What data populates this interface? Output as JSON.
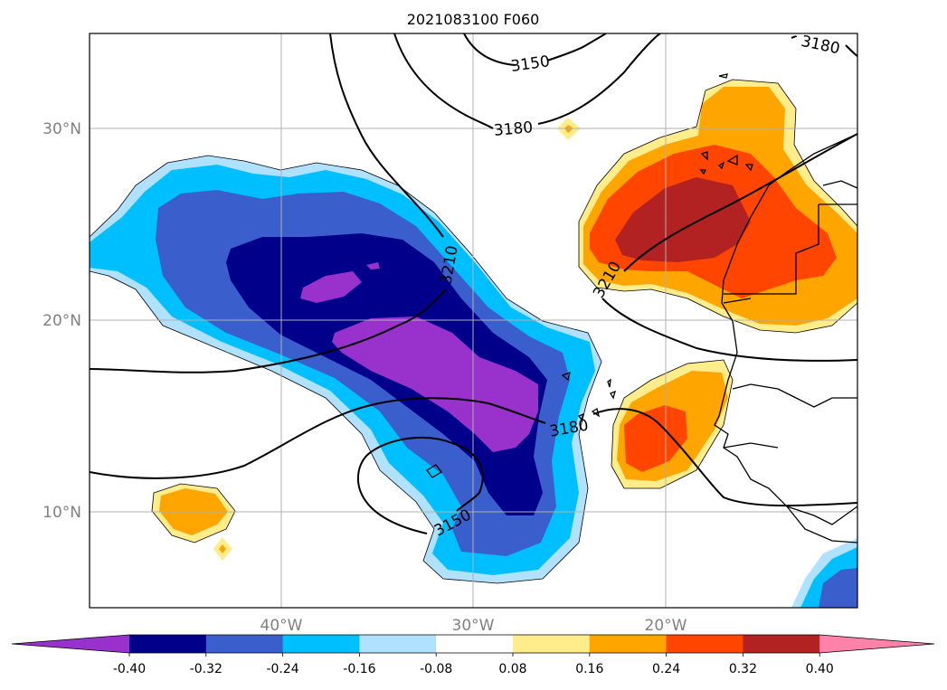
{
  "title": "2021083100 F060",
  "axes": {
    "lon_labels": [
      "40°W",
      "30°W",
      "20°W"
    ],
    "lat_labels": [
      "30°N",
      "20°N",
      "10°N"
    ]
  },
  "contour_labels": [
    "3150",
    "3180",
    "3210",
    "3210",
    "3180",
    "3180",
    "3150"
  ],
  "colorbar": {
    "tick_labels": [
      "-0.40",
      "-0.32",
      "-0.24",
      "-0.16",
      "-0.08",
      "0.08",
      "0.16",
      "0.24",
      "0.32",
      "0.40"
    ],
    "colors": [
      "#9932cc",
      "#00008b",
      "#3a5fcd",
      "#00bfff",
      "#b0e2ff",
      "#ffffff",
      "#ffec8b",
      "#ffa500",
      "#ff4500",
      "#b22222",
      "#ff82ab"
    ]
  },
  "colors": {
    "land_border": "#000000",
    "contour": "#000000",
    "grid": "#b0b0b0"
  }
}
